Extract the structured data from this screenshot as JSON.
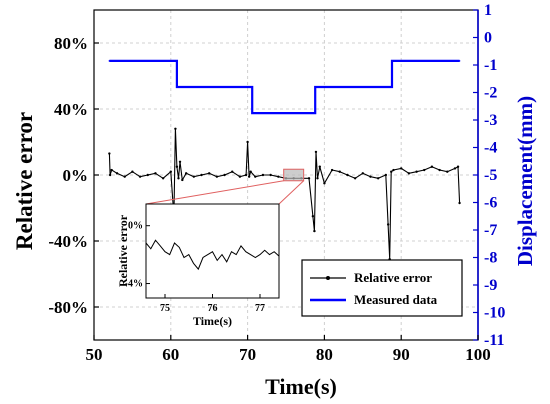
{
  "chart_data": {
    "type": "line",
    "xlabel": "Time(s)",
    "ylabel_left": "Relative error",
    "ylabel_right": "Displacement(mm)",
    "xlim": [
      50,
      100
    ],
    "ylim_left": [
      -1.0,
      1.0
    ],
    "ylim_right": [
      -11,
      1
    ],
    "x_ticks": [
      "50",
      "60",
      "70",
      "80",
      "90",
      "100"
    ],
    "x_tick_values": [
      50,
      60,
      70,
      80,
      90,
      100
    ],
    "y_left_ticks": [
      "80%",
      "40%",
      "0%",
      "-40%",
      "-80%"
    ],
    "y_left_tick_values": [
      0.8,
      0.4,
      0.0,
      -0.4,
      -0.8
    ],
    "y_right_ticks": [
      "1",
      "0",
      "-1",
      "-2",
      "-3",
      "-4",
      "-5",
      "-6",
      "-7",
      "-8",
      "-9",
      "-10",
      "-11"
    ],
    "y_right_tick_values": [
      1,
      0,
      -1,
      -2,
      -3,
      -4,
      -5,
      -6,
      -7,
      -8,
      -9,
      -10,
      -11
    ],
    "grid": true,
    "legend_position": "bottom-right",
    "colors": {
      "relative_error": "#000000",
      "measured": "#0000ff",
      "zoom": "#e06060",
      "axis_right": "#0000cc"
    },
    "series": [
      {
        "name": "Relative error",
        "axis": "left",
        "x": [
          52.0,
          52.1,
          52.3,
          53.0,
          54.0,
          55.0,
          56.0,
          57.0,
          58.0,
          59.0,
          60.0,
          60.4,
          60.6,
          60.8,
          61.0,
          61.2,
          61.5,
          62.0,
          63.0,
          64.0,
          65.0,
          66.0,
          67.0,
          68.0,
          69.0,
          69.8,
          70.0,
          70.2,
          70.4,
          71.0,
          72.0,
          73.0,
          74.0,
          75.0,
          76.0,
          77.0,
          78.0,
          78.5,
          78.7,
          78.9,
          79.1,
          79.4,
          80.0,
          81.0,
          82.0,
          83.0,
          84.0,
          85.0,
          86.0,
          87.0,
          88.0,
          88.3,
          88.5,
          88.7,
          89.0,
          90.0,
          91.0,
          92.0,
          93.0,
          94.0,
          95.0,
          96.0,
          97.0,
          97.4,
          97.6
        ],
        "y": [
          0.13,
          0.0,
          0.03,
          0.01,
          -0.01,
          0.02,
          -0.01,
          0.0,
          0.01,
          -0.02,
          0.02,
          -0.25,
          0.28,
          0.05,
          -0.02,
          0.08,
          -0.03,
          0.01,
          -0.01,
          0.0,
          0.01,
          -0.01,
          0.0,
          0.02,
          -0.01,
          0.0,
          0.2,
          -0.01,
          0.02,
          -0.01,
          0.0,
          0.0,
          -0.01,
          -0.02,
          -0.02,
          -0.02,
          -0.02,
          -0.25,
          -0.34,
          0.14,
          -0.02,
          0.05,
          -0.05,
          0.03,
          0.02,
          0.0,
          -0.02,
          0.01,
          -0.01,
          -0.02,
          0.0,
          -0.3,
          -0.51,
          0.02,
          0.03,
          0.04,
          0.01,
          0.02,
          0.03,
          0.05,
          0.03,
          0.02,
          0.04,
          0.05,
          -0.17
        ]
      },
      {
        "name": "Measured data",
        "axis": "right",
        "x": [
          52.0,
          60.8,
          60.8,
          70.6,
          70.6,
          78.8,
          78.8,
          88.8,
          88.8,
          97.6
        ],
        "y": [
          -0.85,
          -0.85,
          -1.8,
          -1.8,
          -2.75,
          -2.75,
          -1.8,
          -1.8,
          -0.85,
          -0.85
        ]
      }
    ],
    "inset": {
      "ylabel": "Relative error",
      "xlabel": "Time(s)",
      "x_ticks": [
        "75",
        "76",
        "77"
      ],
      "y_ticks": [
        "0%",
        "-4%"
      ],
      "xlim": [
        74.6,
        77.4
      ],
      "ylim": [
        -0.05,
        0.015
      ],
      "zoom_region": {
        "x": [
          74.7,
          77.3
        ],
        "y": [
          -0.035,
          0.035
        ]
      },
      "series": {
        "x": [
          74.6,
          74.7,
          74.8,
          74.9,
          75.0,
          75.1,
          75.2,
          75.3,
          75.4,
          75.5,
          75.6,
          75.7,
          75.8,
          75.9,
          76.0,
          76.1,
          76.2,
          76.3,
          76.4,
          76.5,
          76.6,
          76.7,
          76.8,
          76.9,
          77.0,
          77.1,
          77.2,
          77.3,
          77.4
        ],
        "y": [
          -0.012,
          -0.016,
          -0.01,
          -0.014,
          -0.018,
          -0.02,
          -0.012,
          -0.015,
          -0.022,
          -0.02,
          -0.026,
          -0.03,
          -0.022,
          -0.02,
          -0.018,
          -0.024,
          -0.02,
          -0.025,
          -0.018,
          -0.02,
          -0.014,
          -0.018,
          -0.02,
          -0.022,
          -0.02,
          -0.017,
          -0.02,
          -0.018,
          -0.021
        ]
      }
    },
    "legend": [
      {
        "label": "Relative error",
        "marker": true
      },
      {
        "label": "Measured data",
        "marker": false
      }
    ]
  }
}
